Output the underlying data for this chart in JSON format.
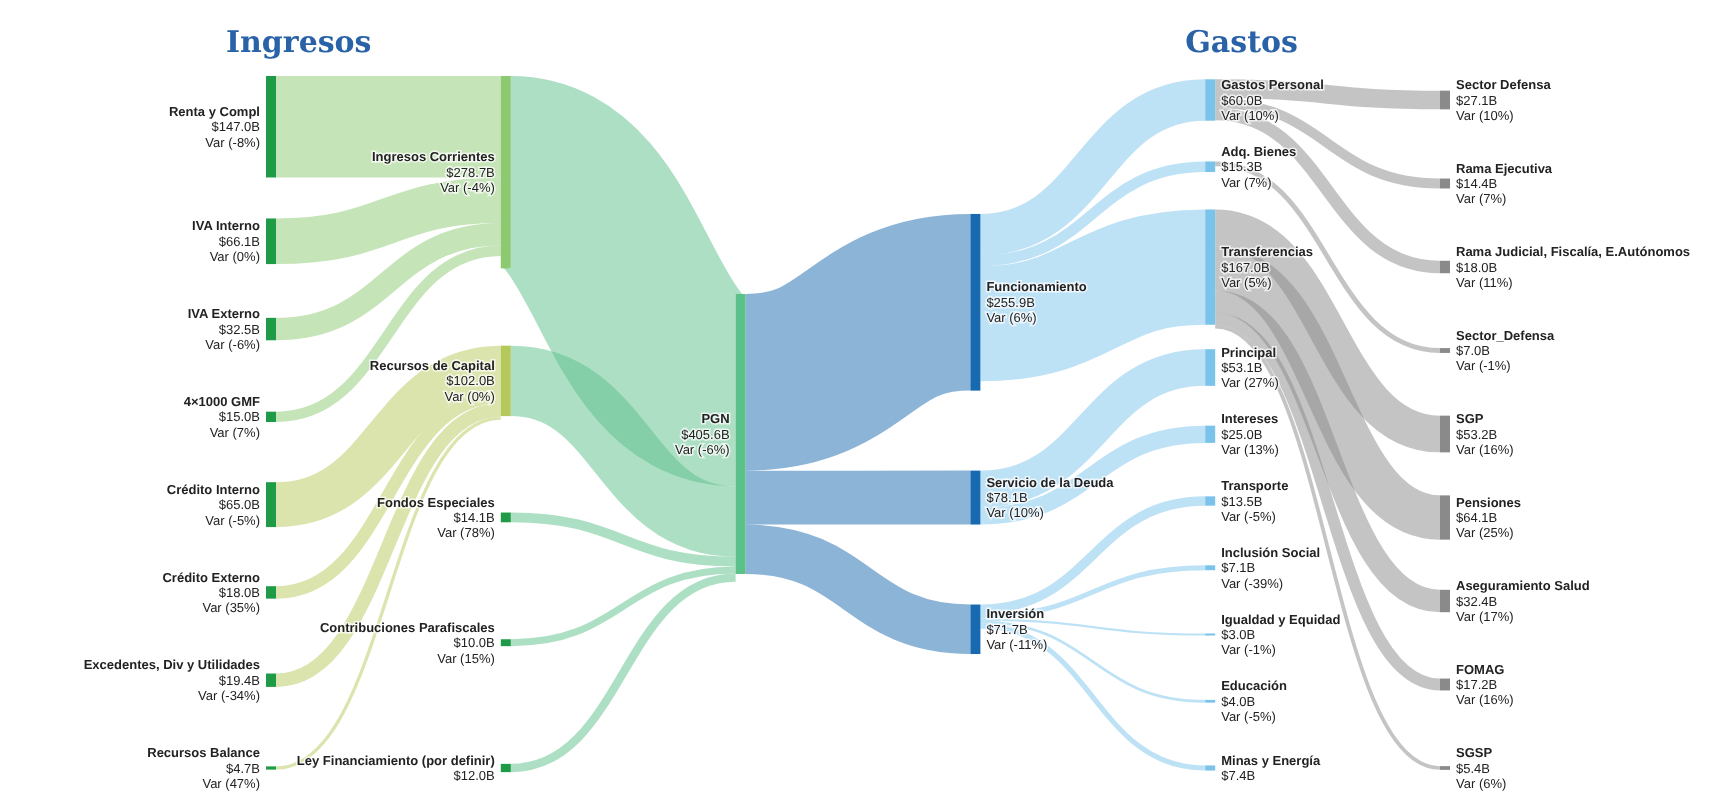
{
  "chart_data": {
    "type": "other",
    "categories": [
      "Renta y Compl",
      "IVA Interno",
      "IVA Externo",
      "4×1000 GMF",
      "Ingresos Corrientes",
      "Crédito Interno",
      "Crédito Externo",
      "Excedentes, Div y Utilidades",
      "Recursos Balance",
      "Recursos de Capital",
      "Fondos Especiales",
      "Contribuciones Parafiscales",
      "Ley Financiamiento (por definir)",
      "PGN",
      "Funcionamiento",
      "Gastos Personal",
      "Sector Defensa",
      "Rama Ejecutiva",
      "Rama Judicial, Fiscalía, E.Autónomos",
      "Adq. Bienes",
      "Sector_Defensa",
      "Transferencias",
      "SGP",
      "Pensiones",
      "Aseguramiento Salud",
      "FOMAG",
      "SGSP",
      "Servicio de la Deuda",
      "Principal",
      "Intereses",
      "Inversión",
      "Transporte",
      "Inclusión Social",
      "Igualdad y Equidad",
      "Educación",
      "Minas y Energía"
    ],
    "colors": [
      "#1f9a46",
      "#1f9a46",
      "#1f9a46",
      "#1f9a46",
      "#8cc970",
      "#1f9a46",
      "#1f9a46",
      "#1f9a46",
      "#1f9a46",
      "#b5c95a",
      "#1f9a46",
      "#1f9a46",
      "#1f9a46",
      "#5cc08a",
      "#1769b0",
      "#7cc3ec",
      "#8a8a8a",
      "#8a8a8a",
      "#8a8a8a",
      "#7cc3ec",
      "#8a8a8a",
      "#7cc3ec",
      "#8a8a8a",
      "#8a8a8a",
      "#8a8a8a",
      "#8a8a8a",
      "#8a8a8a",
      "#1769b0",
      "#7cc3ec",
      "#7cc3ec",
      "#1769b0",
      "#7cc3ec",
      "#7cc3ec",
      "#7cc3ec",
      "#7cc3ec",
      "#7cc3ec"
    ],
    "series": [
      {
        "values": [
          147.0,
          66.1,
          32.5,
          15.0,
          null,
          null,
          null,
          null,
          null,
          null,
          null,
          null,
          null,
          null,
          null,
          null,
          null,
          null,
          null,
          null,
          null,
          null,
          null,
          null,
          null,
          null,
          null,
          null,
          null,
          null,
          null,
          null,
          null,
          null,
          null,
          null
        ],
        "value_labels": [
          "$147.0B",
          "$66.1B",
          "$32.5B",
          "$15.0B",
          null,
          null,
          null,
          null,
          null,
          null,
          null,
          null,
          null,
          null,
          null,
          null,
          null,
          null,
          null,
          null,
          null,
          null,
          null,
          null,
          null,
          null,
          null,
          null,
          null,
          null,
          null,
          null,
          null,
          null,
          null,
          null
        ]
      },
      {
        "values": [
          null,
          null,
          null,
          null,
          null,
          65.0,
          18.0,
          19.4,
          4.7,
          null,
          null,
          null,
          null,
          null,
          null,
          null,
          null,
          null,
          null,
          null,
          null,
          null,
          null,
          null,
          null,
          null,
          null,
          null,
          null,
          null,
          null,
          null,
          null,
          null,
          null,
          null
        ],
        "value_labels": [
          null,
          null,
          null,
          null,
          null,
          "$65.0B",
          "$18.0B",
          "$19.4B",
          "$4.7B",
          null,
          null,
          null,
          null,
          null,
          null,
          null,
          null,
          null,
          null,
          null,
          null,
          null,
          null,
          null,
          null,
          null,
          null,
          null,
          null,
          null,
          null,
          null,
          null,
          null,
          null,
          null
        ]
      },
      {
        "values": [
          null,
          null,
          null,
          null,
          278.7,
          null,
          null,
          null,
          null,
          102.0,
          14.1,
          10.0,
          12.0,
          null,
          null,
          null,
          null,
          null,
          null,
          null,
          null,
          null,
          null,
          null,
          null,
          null,
          null,
          null,
          null,
          null,
          null,
          null,
          null,
          null,
          null,
          null
        ],
        "value_labels": [
          null,
          null,
          null,
          null,
          "$278.7B",
          null,
          null,
          null,
          null,
          "$102.0B",
          "$14.1B",
          "$10.0B",
          "$12.0B",
          null,
          null,
          null,
          null,
          null,
          null,
          null,
          null,
          null,
          null,
          null,
          null,
          null,
          null,
          null,
          null,
          null,
          null,
          null,
          null,
          null,
          null,
          null
        ]
      },
      {
        "values": [
          null,
          null,
          null,
          null,
          null,
          null,
          null,
          null,
          null,
          null,
          null,
          null,
          null,
          405.6,
          null,
          null,
          null,
          null,
          null,
          null,
          null,
          null,
          null,
          null,
          null,
          null,
          null,
          null,
          null,
          null,
          null,
          null,
          null,
          null,
          null,
          null
        ],
        "value_labels": [
          null,
          null,
          null,
          null,
          null,
          null,
          null,
          null,
          null,
          null,
          null,
          null,
          null,
          "$405.6B",
          null,
          null,
          null,
          null,
          null,
          null,
          null,
          null,
          null,
          null,
          null,
          null,
          null,
          null,
          null,
          null,
          null,
          null,
          null,
          null,
          null,
          null
        ]
      },
      {
        "values": [
          null,
          null,
          null,
          null,
          null,
          null,
          null,
          null,
          null,
          null,
          null,
          null,
          null,
          null,
          255.9,
          null,
          null,
          null,
          null,
          null,
          null,
          null,
          null,
          null,
          null,
          null,
          null,
          78.1,
          null,
          null,
          71.7,
          null,
          null,
          null,
          null,
          null
        ],
        "value_labels": [
          null,
          null,
          null,
          null,
          null,
          null,
          null,
          null,
          null,
          null,
          null,
          null,
          null,
          null,
          "$255.9B",
          null,
          null,
          null,
          null,
          null,
          null,
          null,
          null,
          null,
          null,
          null,
          null,
          "$78.1B",
          null,
          null,
          "$71.7B",
          null,
          null,
          null,
          null,
          null
        ]
      },
      {
        "values": [
          null,
          null,
          null,
          null,
          null,
          null,
          null,
          null,
          null,
          null,
          null,
          null,
          null,
          null,
          null,
          60.0,
          null,
          null,
          null,
          15.3,
          null,
          167.0,
          null,
          null,
          null,
          null,
          null,
          null,
          null,
          null,
          null,
          null,
          null,
          null,
          null,
          null
        ],
        "value_labels": [
          null,
          null,
          null,
          null,
          null,
          null,
          null,
          null,
          null,
          null,
          null,
          null,
          null,
          null,
          null,
          "$60.0B",
          null,
          null,
          null,
          "$15.3B",
          null,
          "$167.0B",
          null,
          null,
          null,
          null,
          null,
          null,
          null,
          null,
          null,
          null,
          null,
          null,
          null,
          null
        ]
      },
      {
        "values": [
          null,
          null,
          null,
          null,
          null,
          null,
          null,
          null,
          null,
          null,
          null,
          null,
          null,
          null,
          null,
          null,
          27.1,
          14.4,
          18.0,
          null,
          null,
          null,
          null,
          null,
          null,
          null,
          null,
          null,
          null,
          null,
          null,
          null,
          null,
          null,
          null,
          null
        ],
        "value_labels": [
          null,
          null,
          null,
          null,
          null,
          null,
          null,
          null,
          null,
          null,
          null,
          null,
          null,
          null,
          null,
          null,
          "$27.1B",
          "$14.4B",
          "$18.0B",
          null,
          null,
          null,
          null,
          null,
          null,
          null,
          null,
          null,
          null,
          null,
          null,
          null,
          null,
          null,
          null,
          null
        ]
      },
      {
        "values": [
          null,
          null,
          null,
          null,
          null,
          null,
          null,
          null,
          null,
          null,
          null,
          null,
          null,
          null,
          null,
          null,
          null,
          null,
          null,
          null,
          7.0,
          null,
          null,
          null,
          null,
          null,
          null,
          null,
          null,
          null,
          null,
          null,
          null,
          null,
          null,
          null
        ],
        "value_labels": [
          null,
          null,
          null,
          null,
          null,
          null,
          null,
          null,
          null,
          null,
          null,
          null,
          null,
          null,
          null,
          null,
          null,
          null,
          null,
          null,
          "$7.0B",
          null,
          null,
          null,
          null,
          null,
          null,
          null,
          null,
          null,
          null,
          null,
          null,
          null,
          null,
          null
        ]
      },
      {
        "values": [
          null,
          null,
          null,
          null,
          null,
          null,
          null,
          null,
          null,
          null,
          null,
          null,
          null,
          null,
          null,
          null,
          null,
          null,
          null,
          null,
          null,
          null,
          53.2,
          64.1,
          32.4,
          17.2,
          5.4,
          null,
          null,
          null,
          null,
          null,
          null,
          null,
          null,
          null
        ],
        "value_labels": [
          null,
          null,
          null,
          null,
          null,
          null,
          null,
          null,
          null,
          null,
          null,
          null,
          null,
          null,
          null,
          null,
          null,
          null,
          null,
          null,
          null,
          null,
          "$53.2B",
          "$64.1B",
          "$32.4B",
          "$17.2B",
          "$5.4B",
          null,
          null,
          null,
          null,
          null,
          null,
          null,
          null,
          null
        ]
      },
      {
        "values": [
          null,
          null,
          null,
          null,
          null,
          null,
          null,
          null,
          null,
          null,
          null,
          null,
          null,
          null,
          null,
          null,
          null,
          null,
          null,
          null,
          null,
          null,
          null,
          null,
          null,
          null,
          null,
          null,
          53.1,
          25.0,
          null,
          null,
          null,
          null,
          null,
          null
        ],
        "value_labels": [
          null,
          null,
          null,
          null,
          null,
          null,
          null,
          null,
          null,
          null,
          null,
          null,
          null,
          null,
          null,
          null,
          null,
          null,
          null,
          null,
          null,
          null,
          null,
          null,
          null,
          null,
          null,
          null,
          "$53.1B",
          "$25.0B",
          null,
          null,
          null,
          null,
          null,
          null
        ]
      },
      {
        "values": [
          null,
          null,
          null,
          null,
          null,
          null,
          null,
          null,
          null,
          null,
          null,
          null,
          null,
          null,
          null,
          null,
          null,
          null,
          null,
          null,
          null,
          null,
          null,
          null,
          null,
          null,
          null,
          null,
          null,
          null,
          null,
          13.5,
          7.1,
          3.0,
          4.0,
          7.4
        ],
        "value_labels": [
          null,
          null,
          null,
          null,
          null,
          null,
          null,
          null,
          null,
          null,
          null,
          null,
          null,
          null,
          null,
          null,
          null,
          null,
          null,
          null,
          null,
          null,
          null,
          null,
          null,
          null,
          null,
          null,
          null,
          null,
          null,
          "$13.5B",
          "$7.1B",
          "$3.0B",
          "$4.0B",
          "$7.4B"
        ]
      }
    ],
    "annotations": [
      "Ingresos",
      "Gastos",
      {
        "text": "Var (-8%)",
        "x": "Renta y Compl"
      },
      {
        "text": "Var (0%)",
        "x": "IVA Interno"
      },
      {
        "text": "Var (-6%)",
        "x": "IVA Externo"
      },
      {
        "text": "Var (7%)",
        "x": "4×1000 GMF"
      },
      {
        "text": "Var (-4%)",
        "x": "Ingresos Corrientes"
      },
      {
        "text": "Var (-5%)",
        "x": "Crédito Interno"
      },
      {
        "text": "Var (35%)",
        "x": "Crédito Externo"
      },
      {
        "text": "Var (-34%)",
        "x": "Excedentes, Div y Utilidades"
      },
      {
        "text": "Var (47%)",
        "x": "Recursos Balance"
      },
      {
        "text": "Var (0%)",
        "x": "Recursos de Capital"
      },
      {
        "text": "Var (78%)",
        "x": "Fondos Especiales"
      },
      {
        "text": "Var (15%)",
        "x": "Contribuciones Parafiscales"
      },
      {
        "text": "Var (-6%)",
        "x": "PGN"
      },
      {
        "text": "Var (6%)",
        "x": "Funcionamiento"
      },
      {
        "text": "Var (10%)",
        "x": "Gastos Personal"
      },
      {
        "text": "Var (10%)",
        "x": "Sector Defensa"
      },
      {
        "text": "Var (7%)",
        "x": "Rama Ejecutiva"
      },
      {
        "text": "Var (11%)",
        "x": "Rama Judicial, Fiscalía, E.Autónomos"
      },
      {
        "text": "Var (7%)",
        "x": "Adq. Bienes"
      },
      {
        "text": "Var (-1%)",
        "x": "Sector_Defensa"
      },
      {
        "text": "Var (5%)",
        "x": "Transferencias"
      },
      {
        "text": "Var (16%)",
        "x": "SGP"
      },
      {
        "text": "Var (25%)",
        "x": "Pensiones"
      },
      {
        "text": "Var (17%)",
        "x": "Aseguramiento Salud"
      },
      {
        "text": "Var (16%)",
        "x": "FOMAG"
      },
      {
        "text": "Var (6%)",
        "x": "SGSP"
      },
      {
        "text": "Var (10%)",
        "x": "Servicio de la Deuda"
      },
      {
        "text": "Var (27%)",
        "x": "Principal"
      },
      {
        "text": "Var (13%)",
        "x": "Intereses"
      },
      {
        "text": "Var (-11%)",
        "x": "Inversión"
      },
      {
        "text": "Var (-5%)",
        "x": "Transporte"
      },
      {
        "text": "Var (-39%)",
        "x": "Inclusión Social"
      },
      {
        "text": "Var (-1%)",
        "x": "Igualdad y Equidad"
      },
      {
        "text": "Var (-5%)",
        "x": "Educación"
      }
    ]
  }
}
